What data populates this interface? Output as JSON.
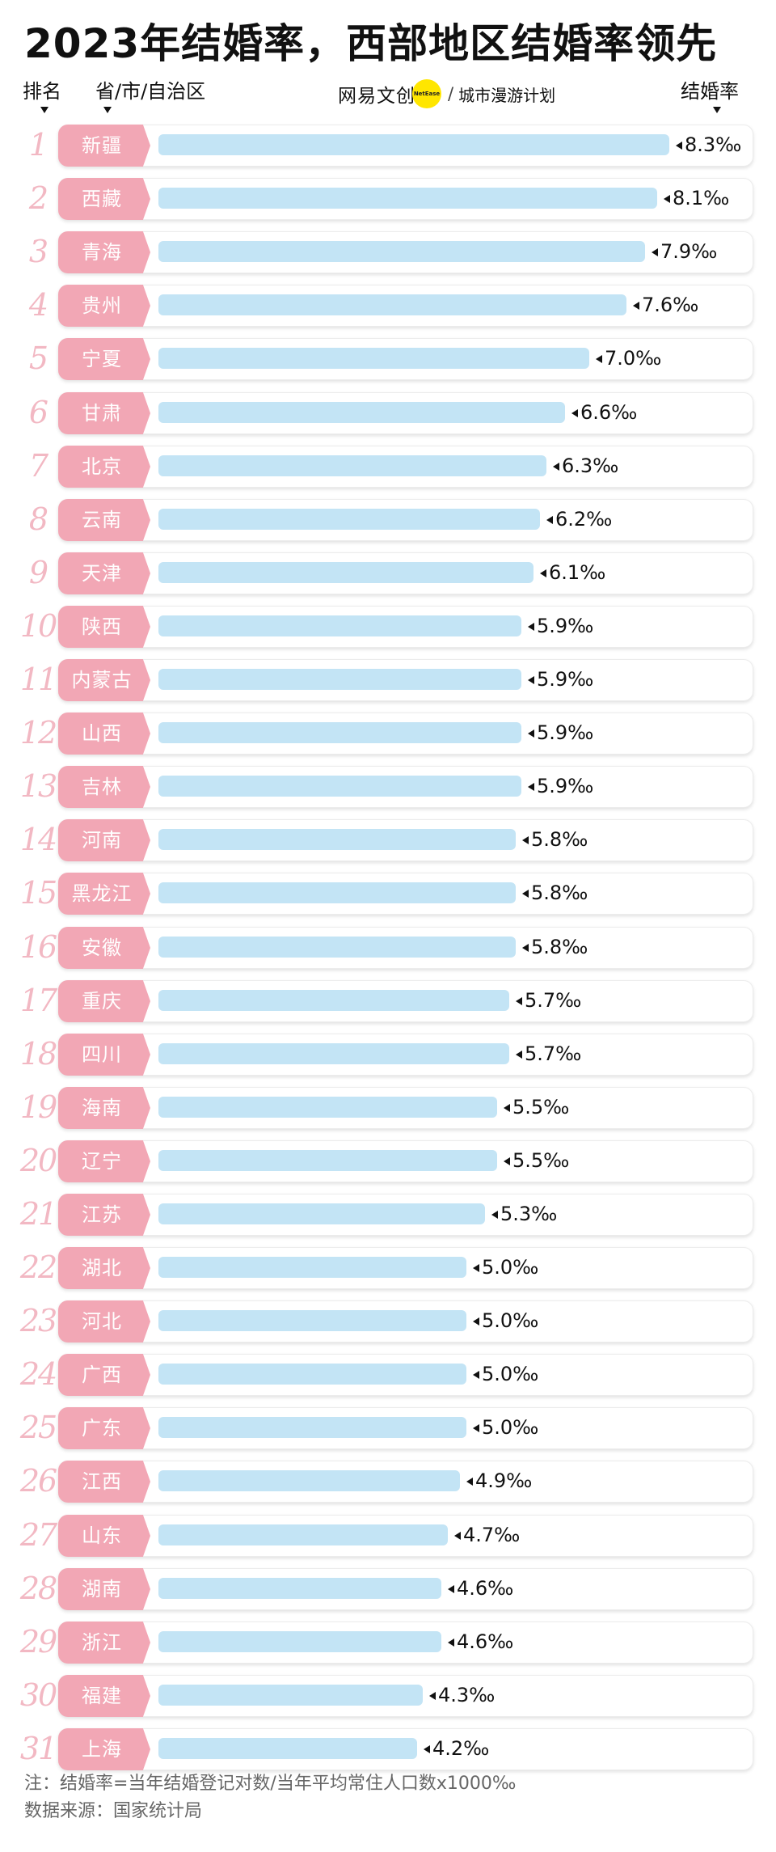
{
  "title": "2023年结婚率，西部地区结婚率领先",
  "headers": {
    "rank": "排名",
    "province": "省/市/自治区",
    "rate": "结婚率"
  },
  "brand": {
    "logo": "网易文创",
    "badge": "NetEase",
    "separator": "/",
    "subtitle": "城市漫游计划"
  },
  "chart_data": {
    "type": "bar",
    "orientation": "horizontal",
    "unit": "‰",
    "categories": [
      "新疆",
      "西藏",
      "青海",
      "贵州",
      "宁夏",
      "甘肃",
      "北京",
      "云南",
      "天津",
      "陕西",
      "内蒙古",
      "山西",
      "吉林",
      "河南",
      "黑龙江",
      "安徽",
      "重庆",
      "四川",
      "海南",
      "辽宁",
      "江苏",
      "湖北",
      "河北",
      "广西",
      "广东",
      "江西",
      "山东",
      "湖南",
      "浙江",
      "福建",
      "上海"
    ],
    "ranks": [
      "1",
      "2",
      "3",
      "4",
      "5",
      "6",
      "7",
      "8",
      "9",
      "10",
      "11",
      "12",
      "13",
      "14",
      "15",
      "16",
      "17",
      "18",
      "19",
      "20",
      "21",
      "22",
      "23",
      "24",
      "25",
      "26",
      "27",
      "28",
      "29",
      "30",
      "31"
    ],
    "values": [
      8.3,
      8.1,
      7.9,
      7.6,
      7.0,
      6.6,
      6.3,
      6.2,
      6.1,
      5.9,
      5.9,
      5.9,
      5.9,
      5.8,
      5.8,
      5.8,
      5.7,
      5.7,
      5.5,
      5.5,
      5.3,
      5.0,
      5.0,
      5.0,
      5.0,
      4.9,
      4.7,
      4.6,
      4.6,
      4.3,
      4.2
    ],
    "value_labels": [
      "8.3‰",
      "8.1‰",
      "7.9‰",
      "7.6‰",
      "7.0‰",
      "6.6‰",
      "6.3‰",
      "6.2‰",
      "6.1‰",
      "5.9‰",
      "5.9‰",
      "5.9‰",
      "5.9‰",
      "5.8‰",
      "5.8‰",
      "5.8‰",
      "5.7‰",
      "5.7‰",
      "5.5‰",
      "5.5‰",
      "5.3‰",
      "5.0‰",
      "5.0‰",
      "5.0‰",
      "5.0‰",
      "4.9‰",
      "4.7‰",
      "4.6‰",
      "4.6‰",
      "4.3‰",
      "4.2‰"
    ],
    "colors": {
      "label_bg": "#f2a7b5",
      "bar": "#c3e4f5",
      "rank_text": "#f2b8c3"
    }
  },
  "footer": {
    "note": "注：结婚率=当年结婚登记对数/当年平均常住人口数x1000‰",
    "source": "数据来源：国家统计局"
  }
}
